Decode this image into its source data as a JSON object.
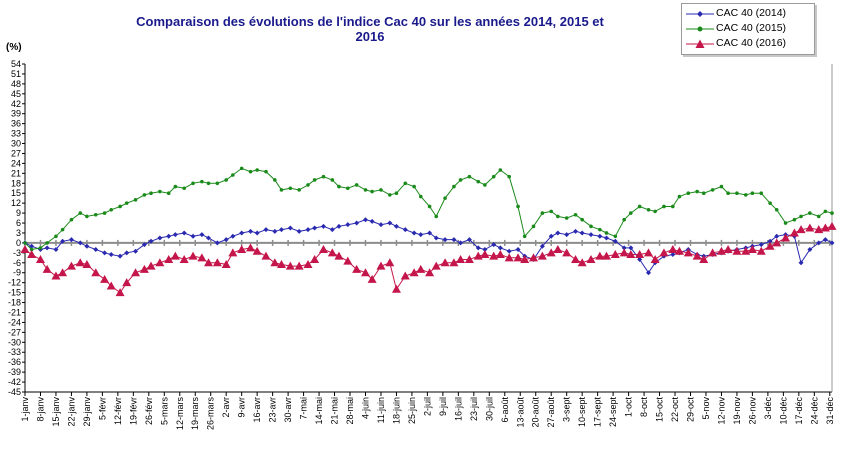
{
  "chart_data": {
    "type": "line",
    "title": "Comparaison des évolutions de l'indice Cac 40 sur les années 2014, 2015 et 2016",
    "ylabel": "(%)",
    "xlabel": "",
    "ylim": [
      -45,
      54
    ],
    "yticks": [
      54,
      51,
      48,
      45,
      42,
      39,
      36,
      33,
      30,
      27,
      24,
      21,
      18,
      15,
      12,
      9,
      6,
      3,
      0,
      -3,
      -6,
      -9,
      -12,
      -15,
      -18,
      -21,
      -24,
      -27,
      -30,
      -33,
      -36,
      -39,
      -42,
      -45
    ],
    "xticks": [
      "1-janv",
      "8-janv",
      "15-janv",
      "22-janv",
      "29-janv",
      "5-févr",
      "12-févr",
      "19-févr",
      "26-févr",
      "5-mars",
      "12-mars",
      "19-mars",
      "26-mars",
      "2-avr",
      "9-avr",
      "16-avr",
      "23-avr",
      "30-avr",
      "7-mai",
      "14-mai",
      "21-mai",
      "28-mai",
      "4-juin",
      "11-juin",
      "18-juin",
      "25-juin",
      "2-juil",
      "9-juil",
      "16-juil",
      "23-juil",
      "30-juil",
      "6-août",
      "13-août",
      "20-août",
      "27-août",
      "3-sept",
      "10-sept",
      "17-sept",
      "24-sept",
      "1-oct",
      "8-oct",
      "15-oct",
      "22-oct",
      "29-oct",
      "5-nov",
      "12-nov",
      "19-nov",
      "26-nov",
      "3-déc",
      "10-déc",
      "17-déc",
      "24-déc",
      "31-déc"
    ],
    "grid": false,
    "legend_position": "top-right",
    "series": [
      {
        "name": "CAC 40 (2014)",
        "color": "#2a2ab0",
        "marker": "diamond",
        "x": [
          1,
          4,
          8,
          11,
          15,
          18,
          22,
          26,
          29,
          33,
          37,
          40,
          44,
          47,
          51,
          55,
          58,
          62,
          66,
          69,
          73,
          77,
          81,
          84,
          88,
          92,
          95,
          99,
          103,
          106,
          110,
          114,
          117,
          121,
          125,
          129,
          132,
          136,
          140,
          143,
          147,
          151,
          155,
          158,
          162,
          166,
          169,
          173,
          177,
          180,
          184,
          187,
          191,
          195,
          198,
          202,
          206,
          209,
          213,
          216,
          220,
          224,
          227,
          231,
          235,
          239,
          242,
          246,
          250,
          253,
          257,
          261,
          264,
          268,
          272,
          275,
          279,
          283,
          286,
          290,
          294,
          297,
          301,
          305,
          308,
          312,
          316,
          319,
          323,
          327,
          330,
          334,
          338,
          341,
          345,
          349,
          352,
          356,
          360,
          363,
          366
        ],
        "y": [
          0,
          -1,
          -2,
          -1.5,
          -2,
          0.5,
          1,
          0,
          -1,
          -2,
          -3,
          -3.5,
          -4,
          -3,
          -2.5,
          -0.5,
          0.5,
          1.5,
          2,
          2.5,
          3,
          2,
          2.5,
          1.5,
          0,
          1,
          2,
          3,
          3.5,
          3,
          4,
          3.5,
          4,
          4.5,
          3.5,
          4,
          4.5,
          5,
          4,
          5,
          5.5,
          6,
          7,
          6.5,
          5.5,
          6,
          5,
          4,
          3,
          2.5,
          3,
          1.5,
          1,
          1,
          0,
          1,
          -1.5,
          -2,
          -0.5,
          -1.5,
          -2.5,
          -2,
          -4,
          -5,
          -1,
          2,
          3,
          2.5,
          3.5,
          3,
          2.5,
          2,
          1.5,
          0.5,
          -1.5,
          -1.5,
          -5,
          -9,
          -6,
          -4,
          -3.5,
          -3,
          -2,
          -3.5,
          -4,
          -3.5,
          -3,
          -2.5,
          -2,
          -1.5,
          -1,
          -0.5,
          0.5,
          2,
          2.5,
          2,
          -6,
          -2,
          0,
          1,
          0
        ]
      },
      {
        "name": "CAC 40 (2015)",
        "color": "#1a8a1a",
        "marker": "circle",
        "x": [
          1,
          4,
          8,
          11,
          15,
          18,
          22,
          26,
          29,
          33,
          37,
          40,
          44,
          47,
          51,
          55,
          58,
          62,
          66,
          69,
          73,
          77,
          81,
          84,
          88,
          92,
          95,
          99,
          103,
          106,
          110,
          114,
          117,
          121,
          125,
          129,
          132,
          136,
          140,
          143,
          147,
          151,
          155,
          158,
          162,
          166,
          169,
          173,
          177,
          180,
          184,
          187,
          191,
          195,
          198,
          202,
          206,
          209,
          213,
          216,
          220,
          224,
          227,
          231,
          235,
          239,
          242,
          246,
          250,
          253,
          257,
          261,
          264,
          268,
          272,
          275,
          279,
          283,
          286,
          290,
          294,
          297,
          301,
          305,
          308,
          312,
          316,
          319,
          323,
          327,
          330,
          334,
          338,
          341,
          345,
          349,
          352,
          356,
          360,
          363,
          366
        ],
        "y": [
          0,
          -2,
          -1.5,
          0,
          2,
          4,
          7,
          9,
          8,
          8.5,
          9,
          10,
          11,
          12,
          13,
          14.5,
          15,
          15.5,
          15,
          17,
          16.5,
          18,
          18.5,
          18,
          18,
          19,
          20.5,
          22.5,
          21.5,
          22,
          21.5,
          19,
          16,
          16.5,
          16,
          17.5,
          19,
          20,
          19,
          17,
          16.5,
          17.5,
          16,
          15.5,
          16,
          14.5,
          15,
          18,
          17,
          14,
          11,
          8,
          13.5,
          17,
          19,
          20,
          18.5,
          17.5,
          20,
          22,
          20,
          11,
          2,
          5,
          9,
          9.5,
          8,
          7.5,
          8.5,
          7,
          5,
          4,
          3,
          2,
          7,
          9,
          11,
          10,
          9.5,
          11,
          11,
          14,
          15,
          15.5,
          15,
          16,
          17,
          15,
          15,
          14.5,
          15,
          15,
          12,
          10,
          6,
          7,
          8,
          9,
          8,
          9.5,
          9
        ]
      },
      {
        "name": "CAC 40 (2016)",
        "color": "#c4164a",
        "marker": "triangle",
        "x": [
          1,
          4,
          8,
          11,
          15,
          18,
          22,
          26,
          29,
          33,
          37,
          40,
          44,
          47,
          51,
          55,
          58,
          62,
          66,
          69,
          73,
          77,
          81,
          84,
          88,
          92,
          95,
          99,
          103,
          106,
          110,
          114,
          117,
          121,
          125,
          129,
          132,
          136,
          140,
          143,
          147,
          151,
          155,
          158,
          162,
          166,
          169,
          173,
          177,
          180,
          184,
          187,
          191,
          195,
          198,
          202,
          206,
          209,
          213,
          216,
          220,
          224,
          227,
          231,
          235,
          239,
          242,
          246,
          250,
          253,
          257,
          261,
          264,
          268,
          272,
          275,
          279,
          283,
          286,
          290,
          294,
          297,
          301,
          305,
          308,
          312,
          316,
          319,
          323,
          327,
          330,
          334,
          338,
          341,
          345,
          349,
          352,
          356,
          360,
          363,
          366
        ],
        "y": [
          -2,
          -3.5,
          -5,
          -8,
          -10,
          -9,
          -7,
          -6,
          -6.5,
          -9,
          -11,
          -13,
          -15,
          -12,
          -9,
          -8,
          -7,
          -6,
          -5,
          -4,
          -5,
          -4,
          -4.5,
          -6,
          -6,
          -6.5,
          -3,
          -2,
          -1.5,
          -2.5,
          -4,
          -6,
          -6.5,
          -7,
          -7,
          -6.5,
          -5,
          -2,
          -3,
          -4,
          -5.5,
          -8,
          -9,
          -11,
          -7,
          -6,
          -14,
          -10,
          -9,
          -8,
          -9,
          -7,
          -6,
          -6,
          -5,
          -5,
          -4,
          -3.5,
          -4,
          -3.5,
          -4.5,
          -4.5,
          -5,
          -4.5,
          -4,
          -3,
          -2,
          -3,
          -5,
          -6,
          -5,
          -4,
          -4,
          -3.5,
          -3,
          -3.5,
          -3.5,
          -3,
          -5,
          -3,
          -2,
          -2.5,
          -3,
          -4,
          -5,
          -3,
          -2.5,
          -2,
          -2.5,
          -2.5,
          -2,
          -2.5,
          -1,
          0,
          1.5,
          3,
          4,
          4.5,
          4,
          4.5,
          5
        ]
      }
    ]
  }
}
